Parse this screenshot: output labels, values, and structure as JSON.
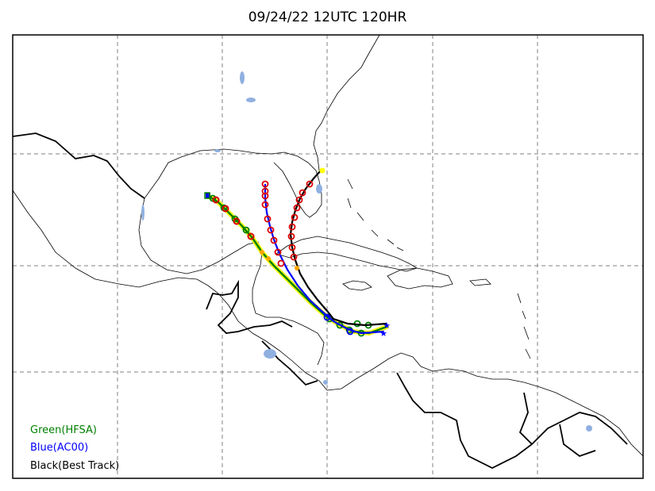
{
  "title": "09/24/22 12UTC 120HR",
  "legend": [
    {
      "label": "Green(HFSA)",
      "color": "#008000"
    },
    {
      "label": "Blue(AC00)",
      "color": "#0000ff"
    },
    {
      "label": "Black(Best Track)",
      "color": "#000000"
    }
  ],
  "colors": {
    "water": "#8fb0e0",
    "grid": "#808080",
    "coast": "#000000",
    "track_red": "#dd0000",
    "track_yellow": "#ffff00",
    "track_orange": "#ffa500"
  },
  "grid": {
    "lines": "dashed",
    "shown": true
  }
}
